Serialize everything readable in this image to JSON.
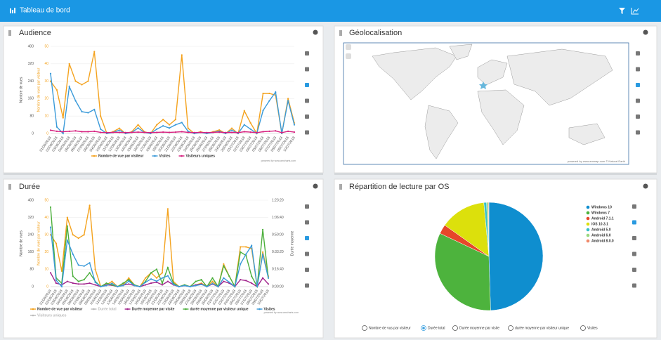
{
  "header": {
    "title": "Tableau de bord"
  },
  "map": {
    "title": "Géolocalisation",
    "credit": "powered by www.ammap.com © Natural Earth"
  },
  "chart_data": [
    {
      "type": "line",
      "title": "Audience",
      "ylabel": "Nombre de vues",
      "y2label": "Nombre de vues par visiteur",
      "y2color": "#f4a31f",
      "credit": "powered by www.amcharts.com",
      "grid": true,
      "categories": [
        "01/06/2018",
        "02/06/2018",
        "03/06/2018",
        "04/06/2018",
        "05/06/2018",
        "06/06/2018",
        "07/06/2018",
        "08/06/2018",
        "09/06/2018",
        "10/06/2018",
        "11/06/2018",
        "12/06/2018",
        "13/06/2018",
        "14/06/2018",
        "15/06/2018",
        "16/06/2018",
        "17/06/2018",
        "18/06/2018",
        "19/06/2018",
        "20/06/2018",
        "21/06/2018",
        "22/06/2018",
        "23/06/2018",
        "24/06/2018",
        "25/06/2018",
        "26/06/2018",
        "27/06/2018",
        "28/06/2018",
        "29/06/2018",
        "30/06/2018",
        "01/07/2018",
        "02/07/2018",
        "03/07/2018",
        "04/07/2018",
        "05/07/2018",
        "06/07/2018",
        "07/07/2018",
        "08/07/2018",
        "09/07/2018",
        "10/07/2018"
      ],
      "ylim": [
        0,
        400
      ],
      "yticks": [
        0,
        80,
        160,
        240,
        320,
        400
      ],
      "y2lim": [
        0,
        50
      ],
      "y2ticks": [
        0,
        10,
        20,
        30,
        40,
        50
      ],
      "series": [
        {
          "name": "Nombre de vue par visiteur",
          "color": "#f4a31f",
          "axis": "y2",
          "values": [
            30,
            25,
            9,
            40,
            30,
            28,
            30,
            47,
            10,
            0,
            1,
            3,
            0,
            1,
            5,
            1,
            0,
            5,
            8,
            5,
            8,
            45,
            3,
            0,
            1,
            0,
            1,
            2,
            0,
            3,
            0,
            13,
            6,
            0,
            23,
            23,
            22,
            0,
            20,
            6
          ]
        },
        {
          "name": "Visites",
          "color": "#3a9ad9",
          "values": [
            275,
            30,
            0,
            215,
            150,
            100,
            95,
            110,
            20,
            0,
            5,
            15,
            0,
            5,
            25,
            5,
            0,
            20,
            35,
            25,
            40,
            50,
            10,
            0,
            5,
            0,
            5,
            10,
            0,
            15,
            0,
            40,
            20,
            0,
            105,
            150,
            190,
            0,
            150,
            40
          ]
        },
        {
          "name": "Visiteurs uniques",
          "color": "#d6217f",
          "values": [
            15,
            10,
            8,
            10,
            12,
            8,
            8,
            10,
            5,
            4,
            5,
            5,
            4,
            5,
            6,
            5,
            4,
            5,
            6,
            5,
            6,
            8,
            5,
            4,
            5,
            4,
            5,
            6,
            4,
            5,
            4,
            8,
            6,
            4,
            8,
            10,
            12,
            4,
            10,
            6
          ]
        }
      ]
    },
    {
      "type": "line",
      "title": "Durée",
      "ylabel": "Nombre de vues",
      "y2label": "Nombre de vues par visiteur",
      "y2color": "#f4a31f",
      "y3label": "Durée moyenne",
      "credit": "powered by www.amcharts.com",
      "grid": true,
      "categories": [
        "01/06/2018",
        "02/06/2018",
        "03/06/2018",
        "04/06/2018",
        "05/06/2018",
        "06/06/2018",
        "07/06/2018",
        "08/06/2018",
        "09/06/2018",
        "10/06/2018",
        "11/06/2018",
        "12/06/2018",
        "13/06/2018",
        "14/06/2018",
        "15/06/2018",
        "16/06/2018",
        "17/06/2018",
        "18/06/2018",
        "19/06/2018",
        "20/06/2018",
        "21/06/2018",
        "22/06/2018",
        "23/06/2018",
        "24/06/2018",
        "25/06/2018",
        "26/06/2018",
        "27/06/2018",
        "28/06/2018",
        "29/06/2018",
        "30/06/2018",
        "01/07/2018",
        "02/07/2018",
        "03/07/2018",
        "04/07/2018",
        "05/07/2018",
        "06/07/2018",
        "07/07/2018",
        "08/07/2018",
        "09/07/2018",
        "10/07/2018"
      ],
      "ylim": [
        0,
        400
      ],
      "yticks": [
        0,
        80,
        160,
        240,
        320,
        400
      ],
      "y2lim": [
        0,
        50
      ],
      "y2ticks": [
        0,
        10,
        20,
        30,
        40,
        50
      ],
      "y3lim": [
        0,
        5000
      ],
      "y3ticks": [
        {
          "value": 0,
          "label": "0:00:00"
        },
        {
          "value": 1000,
          "label": "0:16:40"
        },
        {
          "value": 2000,
          "label": "0:33:20"
        },
        {
          "value": 3000,
          "label": "0:50:00"
        },
        {
          "value": 4000,
          "label": "1:06:40"
        },
        {
          "value": 5000,
          "label": "1:23:20"
        }
      ],
      "series": [
        {
          "name": "Nombre de vue par visiteur",
          "color": "#f4a31f",
          "axis": "y2",
          "values": [
            30,
            25,
            9,
            40,
            30,
            28,
            30,
            47,
            10,
            0,
            1,
            3,
            0,
            1,
            5,
            1,
            0,
            5,
            8,
            5,
            8,
            45,
            3,
            0,
            1,
            0,
            1,
            2,
            0,
            3,
            0,
            13,
            6,
            0,
            23,
            23,
            22,
            0,
            20,
            6
          ]
        },
        {
          "name": "Durée total",
          "color": "#bbbbbb",
          "hidden": true
        },
        {
          "name": "Durée moyenne par visite",
          "color": "#a1238c",
          "axis": "y3",
          "values": [
            800,
            200,
            100,
            300,
            200,
            150,
            150,
            200,
            100,
            0,
            100,
            80,
            0,
            80,
            150,
            60,
            0,
            100,
            200,
            250,
            100,
            300,
            100,
            0,
            60,
            0,
            100,
            150,
            0,
            150,
            0,
            300,
            200,
            0,
            400,
            350,
            200,
            0,
            500,
            150
          ]
        },
        {
          "name": "durée moyenne par visiteur unique",
          "color": "#4caf3c",
          "axis": "y3",
          "values": [
            4600,
            500,
            200,
            3500,
            600,
            300,
            400,
            800,
            300,
            0,
            200,
            100,
            0,
            200,
            400,
            100,
            0,
            300,
            800,
            1000,
            200,
            1100,
            200,
            0,
            100,
            0,
            300,
            400,
            0,
            500,
            0,
            1200,
            600,
            0,
            2000,
            1800,
            600,
            0,
            3300,
            500
          ]
        },
        {
          "name": "Visites",
          "color": "#3a9ad9",
          "values": [
            275,
            30,
            0,
            215,
            150,
            100,
            95,
            110,
            20,
            0,
            5,
            15,
            0,
            5,
            25,
            5,
            0,
            20,
            35,
            25,
            40,
            50,
            10,
            0,
            5,
            0,
            5,
            10,
            0,
            15,
            0,
            40,
            20,
            0,
            105,
            150,
            190,
            0,
            150,
            40
          ]
        },
        {
          "name": "Visiteurs uniques",
          "color": "#bbbbbb",
          "hidden": true
        }
      ]
    },
    {
      "type": "pie",
      "title": "Répartition de lecture par OS",
      "categories": [
        "Windows 10",
        "Windows 7",
        "Android 7.1.1",
        "iOS 10.3.1",
        "Android 5.0",
        "Android 6.0",
        "Android 8.0.0"
      ],
      "values": [
        49.5,
        32.5,
        2.8,
        13.7,
        0.8,
        0.5,
        0.2
      ],
      "colors": [
        "#0f8ecf",
        "#4db33d",
        "#e6472a",
        "#dce00c",
        "#36c0c8",
        "#9ad77f",
        "#f08a6a"
      ],
      "options": [
        "Nombre de vus par visiteur",
        "Durée total",
        "Durée moyenne par visite",
        "durée moyenne par visiteur unique",
        "Visites"
      ],
      "selected": 1
    }
  ]
}
